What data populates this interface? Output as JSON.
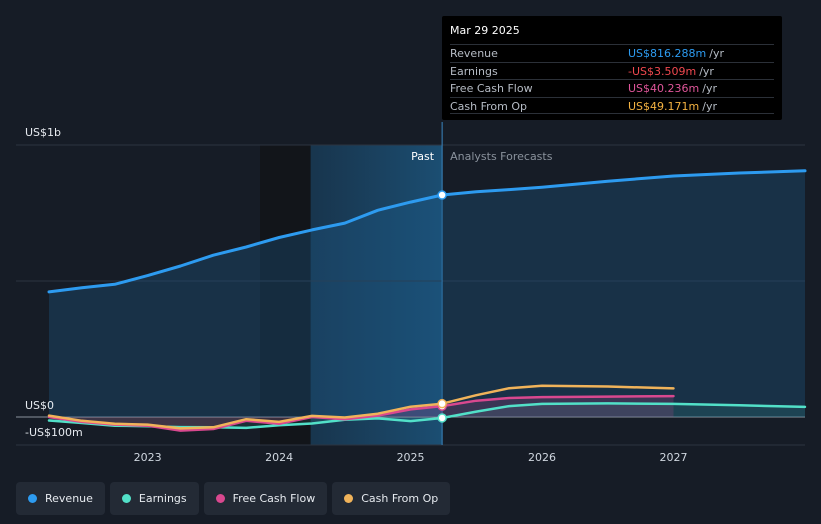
{
  "tooltip": {
    "date": "Mar 29 2025",
    "rows": [
      {
        "label": "Revenue",
        "value": "US$816.288m",
        "unit": "/yr",
        "color": "#2d9bf0"
      },
      {
        "label": "Earnings",
        "value": "-US$3.509m",
        "unit": "/yr",
        "color": "#f0484f"
      },
      {
        "label": "Free Cash Flow",
        "value": "US$40.236m",
        "unit": "/yr",
        "color": "#e0569a"
      },
      {
        "label": "Cash From Op",
        "value": "US$49.171m",
        "unit": "/yr",
        "color": "#f5b342"
      }
    ]
  },
  "legend": [
    {
      "label": "Revenue",
      "color": "#2d9bf0"
    },
    {
      "label": "Earnings",
      "color": "#52e0c8"
    },
    {
      "label": "Free Cash Flow",
      "color": "#d9488f"
    },
    {
      "label": "Cash From Op",
      "color": "#f0b35a"
    }
  ],
  "chart_data": {
    "type": "line",
    "unit": "US$ millions",
    "y_tick_labels": [
      {
        "label": "US$1b",
        "value": 1000
      },
      {
        "label": "US$0",
        "value": 0
      },
      {
        "label": "-US$100m",
        "value": -100
      }
    ],
    "ylim": [
      -100,
      1000
    ],
    "xlim": [
      2022.25,
      2028.0
    ],
    "x_tick_labels": [
      {
        "label": "2023",
        "value": 2023
      },
      {
        "label": "2024",
        "value": 2024
      },
      {
        "label": "2025",
        "value": 2025
      },
      {
        "label": "2026",
        "value": 2026
      },
      {
        "label": "2027",
        "value": 2027
      }
    ],
    "divider": {
      "past_label": "Past",
      "forecast_label": "Analysts Forecasts",
      "x": 2025.24
    },
    "highlight_start": 2024.24,
    "grid": true,
    "series": [
      {
        "name": "Revenue",
        "color": "#2d9bf0",
        "fill": true,
        "marker_x": 2025.24,
        "points": [
          [
            2022.25,
            460
          ],
          [
            2022.5,
            475
          ],
          [
            2022.75,
            488
          ],
          [
            2023.0,
            520
          ],
          [
            2023.25,
            555
          ],
          [
            2023.5,
            595
          ],
          [
            2023.75,
            625
          ],
          [
            2024.0,
            660
          ],
          [
            2024.25,
            688
          ],
          [
            2024.5,
            713
          ],
          [
            2024.75,
            760
          ],
          [
            2025.0,
            790
          ],
          [
            2025.24,
            816
          ],
          [
            2025.5,
            828
          ],
          [
            2025.75,
            836
          ],
          [
            2026.0,
            845
          ],
          [
            2026.5,
            867
          ],
          [
            2027.0,
            886
          ],
          [
            2027.5,
            897
          ],
          [
            2028.0,
            905
          ]
        ]
      },
      {
        "name": "Earnings",
        "color": "#52e0c8",
        "marker_x": 2025.24,
        "points": [
          [
            2022.25,
            -13
          ],
          [
            2022.5,
            -22
          ],
          [
            2022.75,
            -32
          ],
          [
            2023.0,
            -34
          ],
          [
            2023.25,
            -37
          ],
          [
            2023.5,
            -38
          ],
          [
            2023.75,
            -40
          ],
          [
            2024.0,
            -30
          ],
          [
            2024.25,
            -24
          ],
          [
            2024.5,
            -10
          ],
          [
            2024.75,
            -5
          ],
          [
            2025.0,
            -15
          ],
          [
            2025.24,
            -3.5
          ],
          [
            2025.5,
            20
          ],
          [
            2025.75,
            40
          ],
          [
            2026.0,
            48
          ],
          [
            2026.5,
            50
          ],
          [
            2027.0,
            48
          ],
          [
            2027.5,
            43
          ],
          [
            2028.0,
            37
          ]
        ]
      },
      {
        "name": "Free Cash Flow",
        "color": "#d9488f",
        "marker_x": 2025.24,
        "points": [
          [
            2022.25,
            0
          ],
          [
            2022.5,
            -18
          ],
          [
            2022.75,
            -28
          ],
          [
            2023.0,
            -32
          ],
          [
            2023.25,
            -50
          ],
          [
            2023.5,
            -44
          ],
          [
            2023.75,
            -14
          ],
          [
            2024.0,
            -25
          ],
          [
            2024.25,
            0
          ],
          [
            2024.5,
            -8
          ],
          [
            2024.75,
            5
          ],
          [
            2025.0,
            28
          ],
          [
            2025.24,
            40
          ],
          [
            2025.5,
            60
          ],
          [
            2025.75,
            70
          ],
          [
            2026.0,
            73
          ],
          [
            2026.5,
            75
          ],
          [
            2027.0,
            77
          ]
        ]
      },
      {
        "name": "Cash From Op",
        "color": "#f0b35a",
        "marker_x": 2025.24,
        "points": [
          [
            2022.25,
            5
          ],
          [
            2022.5,
            -14
          ],
          [
            2022.75,
            -25
          ],
          [
            2023.0,
            -28
          ],
          [
            2023.25,
            -42
          ],
          [
            2023.5,
            -38
          ],
          [
            2023.75,
            -8
          ],
          [
            2024.0,
            -18
          ],
          [
            2024.25,
            4
          ],
          [
            2024.5,
            -2
          ],
          [
            2024.75,
            12
          ],
          [
            2025.0,
            38
          ],
          [
            2025.24,
            49
          ],
          [
            2025.5,
            80
          ],
          [
            2025.75,
            106
          ],
          [
            2026.0,
            115
          ],
          [
            2026.5,
            112
          ],
          [
            2027.0,
            105
          ]
        ]
      }
    ]
  }
}
